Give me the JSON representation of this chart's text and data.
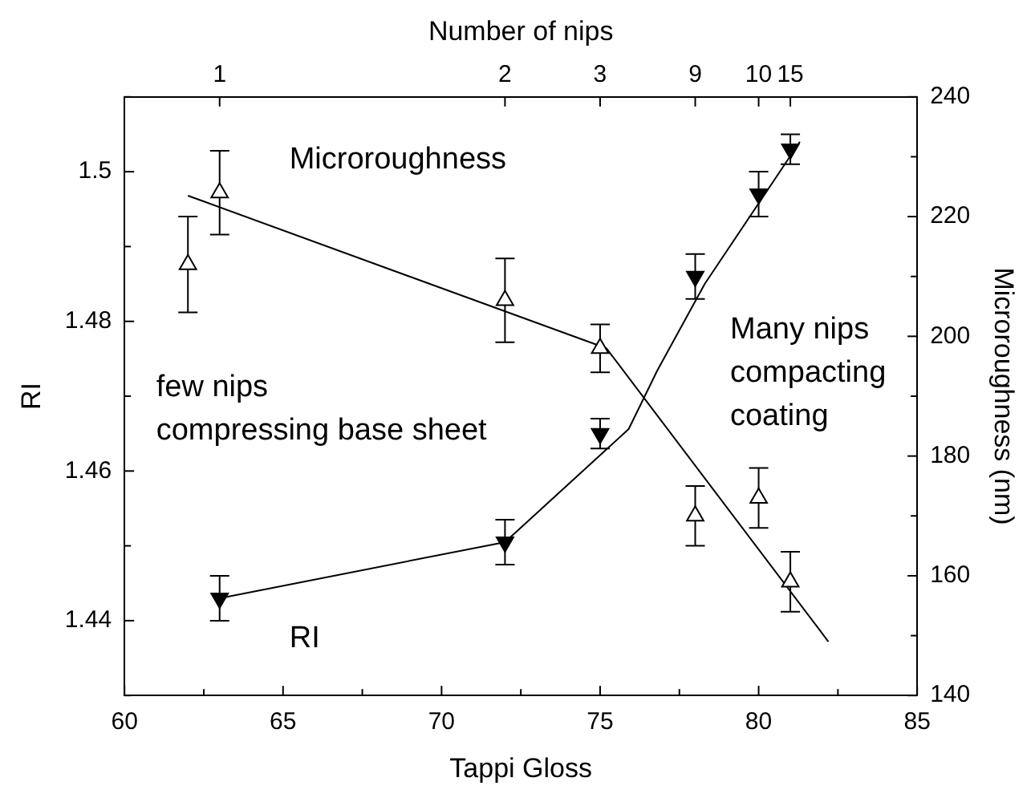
{
  "chart_data": {
    "type": "scatter",
    "xlabel": "Tappi Gloss",
    "ylabel": "RI",
    "y2label": "Microroughness (nm)",
    "x2label": "Number of nips",
    "xlim": [
      60,
      85
    ],
    "xticks": [
      60,
      {
        "value": 62.5,
        "label": null
      },
      65,
      {
        "value": 67.5,
        "label": null
      },
      70,
      {
        "value": 72.5,
        "label": null
      },
      75,
      {
        "value": 77.5,
        "label": null
      },
      80,
      {
        "value": 82.5,
        "label": null
      },
      85
    ],
    "ylim": [
      1.43,
      1.51
    ],
    "yticks": [
      {
        "value": 1.43,
        "label": null
      },
      1.44,
      {
        "value": 1.45,
        "label": null
      },
      1.46,
      {
        "value": 1.47,
        "label": null
      },
      1.48,
      {
        "value": 1.49,
        "label": null
      },
      1.5,
      {
        "value": 1.51,
        "label": null
      }
    ],
    "y2lim": [
      140,
      240
    ],
    "y2ticks": [
      140,
      {
        "value": 150,
        "label": null
      },
      160,
      {
        "value": 170,
        "label": null
      },
      180,
      {
        "value": 190,
        "label": null
      },
      200,
      {
        "value": 210,
        "label": null
      },
      220,
      {
        "value": 230,
        "label": null
      },
      240
    ],
    "grid": false,
    "legend": false,
    "series": [
      {
        "type": "scatter",
        "color": "#000000",
        "marker": "triangle",
        "x": [
          63,
          72,
          75,
          78,
          80,
          81
        ],
        "values": [
          1.443,
          1.4505,
          1.465,
          1.486,
          1.497,
          1.503
        ],
        "errors": [
          0.003,
          0.003,
          0.002,
          0.003,
          0.003,
          0.002
        ]
      },
      {
        "type": "scatter",
        "axis": "y2",
        "color": "#000000",
        "marker": "triangle",
        "x": [
          62,
          63,
          72,
          75,
          78,
          80,
          81
        ],
        "values": [
          212,
          224,
          206,
          198,
          170,
          173,
          159
        ],
        "errors": [
          8,
          7,
          7,
          4,
          5,
          5,
          5
        ]
      },
      {
        "type": "line",
        "color": "#000000",
        "marker": "none",
        "x": [
          63,
          72,
          75.9,
          76.8,
          78.3,
          81.3
        ],
        "values": [
          1.443,
          1.4505,
          1.4656,
          1.4734,
          1.485,
          1.504
        ]
      },
      {
        "type": "line",
        "axis": "y2",
        "color": "#000000",
        "marker": "none",
        "x": [
          62,
          75.2,
          82.2
        ],
        "values": [
          223.5,
          198,
          149
        ]
      }
    ],
    "annotations": [
      "Microroughness",
      "RI",
      "few nips\ncompressing base sheet",
      "Many nips\ncompacting\ncoating",
      {
        "text": "1",
        "x": 63
      },
      {
        "text": "2",
        "x": 72
      },
      {
        "text": "3",
        "x": 75
      },
      {
        "text": "9",
        "x": 78
      },
      {
        "text": "10",
        "x": 80
      },
      {
        "text": "15",
        "x": 81
      }
    ]
  }
}
